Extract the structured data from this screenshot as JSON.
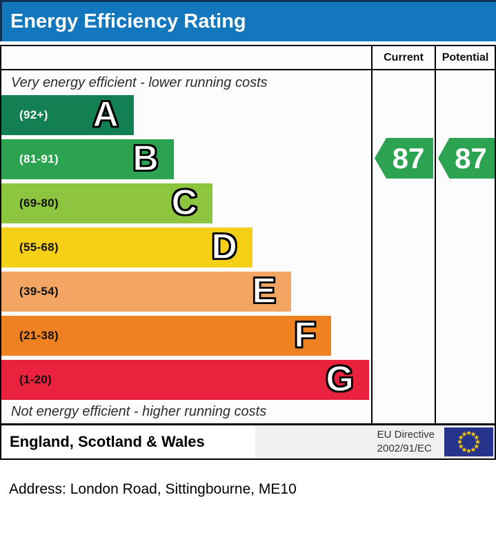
{
  "header": {
    "title": "Energy Efficiency Rating",
    "bg": "#1377bd"
  },
  "table": {
    "columns": [
      "Current",
      "Potential"
    ]
  },
  "chart": {
    "top_caption": "Very energy efficient - lower running costs",
    "bottom_caption": "Not energy efficient - higher running costs",
    "bands": [
      {
        "letter": "A",
        "range": "(92+)",
        "color": "#128053",
        "width_pct": 35.8,
        "label_color": "#ffffff"
      },
      {
        "letter": "B",
        "range": "(81-91)",
        "color": "#2ba351",
        "width_pct": 46.6,
        "label_color": "#ffffff"
      },
      {
        "letter": "C",
        "range": "(69-80)",
        "color": "#8cc63f",
        "width_pct": 57.1,
        "label_color": "#111111"
      },
      {
        "letter": "D",
        "range": "(55-68)",
        "color": "#f6d016",
        "width_pct": 67.9,
        "label_color": "#111111"
      },
      {
        "letter": "E",
        "range": "(39-54)",
        "color": "#f3a564",
        "width_pct": 78.4,
        "label_color": "#111111"
      },
      {
        "letter": "F",
        "range": "(21-38)",
        "color": "#ee8122",
        "width_pct": 89.2,
        "label_color": "#111111"
      },
      {
        "letter": "G",
        "range": "(1-20)",
        "color": "#e8213d",
        "width_pct": 99.4,
        "label_color": "#111111"
      }
    ]
  },
  "ratings": {
    "current": {
      "value": "87",
      "band": "B",
      "color": "#2ba351"
    },
    "potential": {
      "value": "87",
      "band": "B",
      "color": "#2ba351"
    }
  },
  "footer": {
    "region": "England, Scotland & Wales",
    "directive_line1": "EU Directive",
    "directive_line2": "2002/91/EC",
    "flag_colors": {
      "field": "#26348b",
      "stars": "#ffcc00"
    }
  },
  "address_line": "Address: London Road, Sittingbourne, ME10",
  "chart_data": {
    "type": "bar",
    "title": "Energy Efficiency Rating",
    "categories": [
      "A",
      "B",
      "C",
      "D",
      "E",
      "F",
      "G"
    ],
    "band_ranges": [
      "92+",
      "81-91",
      "69-80",
      "55-68",
      "39-54",
      "21-38",
      "1-20"
    ],
    "band_colors": [
      "#128053",
      "#2ba351",
      "#8cc63f",
      "#f6d016",
      "#f3a564",
      "#ee8122",
      "#e8213d"
    ],
    "bar_width_pct": [
      35.8,
      46.6,
      57.1,
      67.9,
      78.4,
      89.2,
      99.4
    ],
    "value_columns": [
      "Current",
      "Potential"
    ],
    "markers": {
      "current": 87,
      "current_band": "B",
      "potential": 87,
      "potential_band": "B"
    },
    "top_caption": "Very energy efficient - lower running costs",
    "bottom_caption": "Not energy efficient - higher running costs",
    "footer_region": "England, Scotland & Wales",
    "footer_directive": "EU Directive 2002/91/EC"
  }
}
